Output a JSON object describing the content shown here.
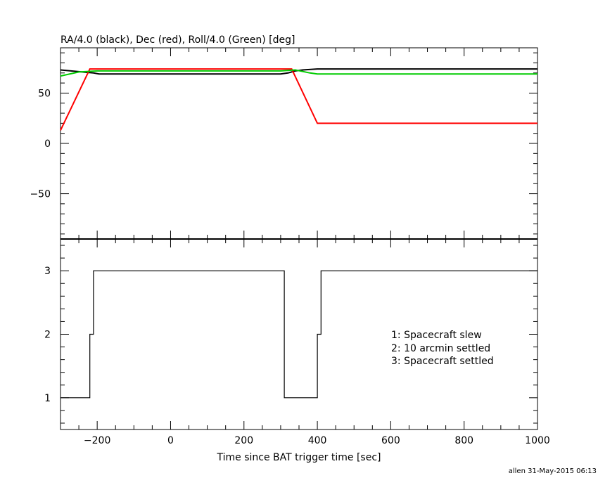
{
  "chart_data": [
    {
      "type": "line",
      "title": "RA/4.0 (black), Dec (red), Roll/4.0 (Green) [deg]",
      "xlim": [
        -300,
        1000
      ],
      "ylim": [
        -95,
        95
      ],
      "yticks": [
        50,
        0,
        -50
      ],
      "series": [
        {
          "color": "#000000",
          "x": [
            -300,
            -210,
            -195,
            300,
            320,
            340,
            360,
            400,
            1000
          ],
          "y": [
            73,
            70,
            69,
            69,
            70,
            72,
            73,
            74,
            74
          ]
        },
        {
          "color": "#ff0000",
          "x": [
            -300,
            -220,
            330,
            400,
            1000
          ],
          "y": [
            13,
            74,
            74,
            20,
            20
          ]
        },
        {
          "color": "#00cc00",
          "x": [
            -300,
            -250,
            -200,
            300,
            340,
            380,
            400,
            1000
          ],
          "y": [
            67,
            71,
            72,
            72,
            73,
            70,
            69,
            69
          ]
        }
      ]
    },
    {
      "type": "line",
      "xlabel": "Time since BAT trigger time [sec]",
      "xlim": [
        -300,
        1000
      ],
      "ylim": [
        0.5,
        3.5
      ],
      "xticks": [
        -200,
        0,
        200,
        400,
        600,
        800,
        1000
      ],
      "yticks": [
        1,
        2,
        3
      ],
      "series": [
        {
          "color": "#000000",
          "x": [
            -300,
            -220,
            -220,
            -210,
            -210,
            310,
            310,
            400,
            400,
            410,
            410,
            1000
          ],
          "y": [
            1,
            1,
            2,
            2,
            3,
            3,
            1,
            1,
            2,
            2,
            3,
            3
          ]
        }
      ],
      "annotations": [
        "1: Spacecraft slew",
        "2: 10 arcmin settled",
        "3: Spacecraft settled"
      ]
    }
  ],
  "footer": "allen 31-May-2015 06:13"
}
